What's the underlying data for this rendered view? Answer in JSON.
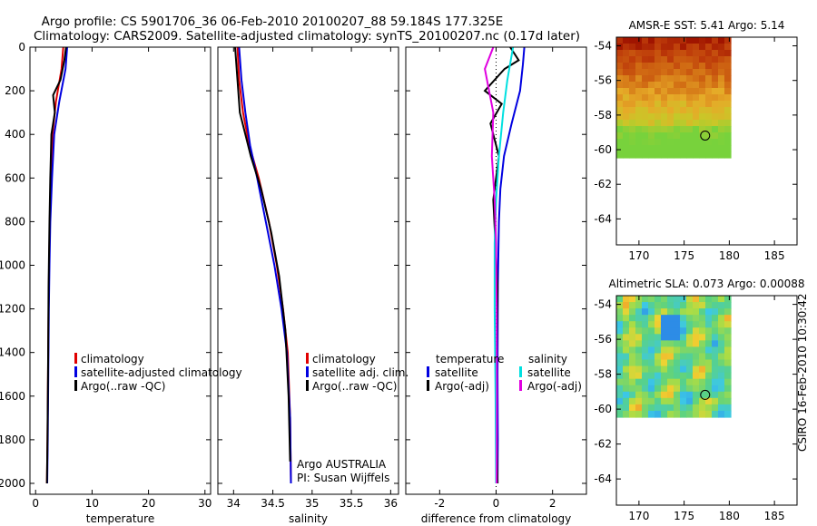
{
  "title_line1": "Argo profile: CS 5901706_36 06-Feb-2010 20100207_88 59.184S 177.325E",
  "title_line2": "Climatology: CARS2009. Satellite-adjusted climatology: synTS_20100207.nc (0.17d later)",
  "watermark": "CSIRO 16-Feb-2010 10:30:42",
  "chart_data": [
    {
      "type": "line",
      "xlabel": "temperature",
      "ylabel": "",
      "xlim": [
        -1,
        31
      ],
      "ylim": [
        2050,
        0
      ],
      "x_ticks": [
        "0",
        "10",
        "20",
        "30"
      ],
      "x_tick_values": [
        0,
        10,
        20,
        30
      ],
      "y_ticks": [
        "0",
        "200",
        "400",
        "600",
        "800",
        "1000",
        "1200",
        "1400",
        "1600",
        "1800",
        "2000"
      ],
      "y_tick_values": [
        0,
        200,
        400,
        600,
        800,
        1000,
        1200,
        1400,
        1600,
        1800,
        2000
      ],
      "legend": [
        "climatology",
        "satellite-adjusted climatology",
        "Argo(..raw -QC)"
      ],
      "legend_colors": [
        "#e00000",
        "#0000e0",
        "#000000"
      ],
      "series": [
        {
          "name": "climatology",
          "color": "#e00000",
          "x": [
            4.9,
            4.6,
            3.6,
            3.0,
            2.7,
            2.5,
            2.4,
            2.3,
            2.2,
            2.1,
            2.0
          ],
          "y": [
            0,
            100,
            250,
            400,
            600,
            800,
            1000,
            1200,
            1500,
            1800,
            2000
          ]
        },
        {
          "name": "satellite-adjusted climatology",
          "color": "#0000e0",
          "x": [
            5.6,
            5.3,
            4.2,
            3.3,
            2.9,
            2.6,
            2.45,
            2.35,
            2.25,
            2.15,
            2.05
          ],
          "y": [
            0,
            100,
            250,
            400,
            600,
            800,
            1000,
            1200,
            1500,
            1800,
            2000
          ]
        },
        {
          "name": "Argo(..raw -QC)",
          "color": "#000000",
          "x": [
            5.4,
            5.1,
            4.4,
            3.1,
            3.4,
            2.8,
            2.6,
            2.45,
            2.3,
            2.2,
            2.1,
            2.0
          ],
          "y": [
            0,
            60,
            150,
            220,
            300,
            400,
            600,
            800,
            1100,
            1500,
            1800,
            2000
          ]
        }
      ]
    },
    {
      "type": "line",
      "xlabel": "salinity",
      "xlim": [
        33.8,
        36.1
      ],
      "ylim": [
        2050,
        0
      ],
      "x_ticks": [
        "34",
        "34.5",
        "35",
        "35.5",
        "36"
      ],
      "x_tick_values": [
        34,
        34.5,
        35,
        35.5,
        36
      ],
      "legend": [
        "climatology",
        "satellite adj. clim.",
        "Argo(..raw -QC)"
      ],
      "legend_colors": [
        "#e00000",
        "#0000e0",
        "#000000"
      ],
      "annotation": [
        "Argo AUSTRALIA",
        "PI: Susan Wijffels"
      ],
      "series": [
        {
          "name": "climatology",
          "color": "#e00000",
          "x": [
            34.05,
            34.07,
            34.12,
            34.2,
            34.32,
            34.45,
            34.55,
            34.63,
            34.69,
            34.72,
            34.73
          ],
          "y": [
            0,
            150,
            300,
            450,
            600,
            800,
            1000,
            1200,
            1400,
            1700,
            2000
          ]
        },
        {
          "name": "satellite adj. clim.",
          "color": "#0000e0",
          "x": [
            34.07,
            34.1,
            34.15,
            34.21,
            34.3,
            34.41,
            34.52,
            34.61,
            34.68,
            34.72,
            34.73
          ],
          "y": [
            0,
            150,
            300,
            450,
            600,
            800,
            1000,
            1200,
            1400,
            1700,
            2000
          ]
        },
        {
          "name": "Argo(..raw -QC)",
          "color": "#000000",
          "x": [
            34.02,
            34.05,
            34.08,
            34.15,
            34.22,
            34.35,
            34.48,
            34.58,
            34.66,
            34.7,
            34.72
          ],
          "y": [
            0,
            150,
            300,
            400,
            500,
            650,
            850,
            1050,
            1300,
            1600,
            1900
          ]
        }
      ]
    },
    {
      "type": "line",
      "xlabel": "difference from climatology",
      "xlim": [
        -3.2,
        3.2
      ],
      "ylim": [
        2050,
        0
      ],
      "x_ticks": [
        "-2",
        "0",
        "2"
      ],
      "x_tick_values": [
        -2,
        0,
        2
      ],
      "legend": [
        "temperature",
        "satellite",
        "Argo(-adj)",
        "salinity",
        "satellite",
        "Argo(-adj)"
      ],
      "legend_colors": [
        "",
        "#0000e0",
        "#000000",
        "",
        "#00e0e0",
        "#e000e0"
      ],
      "series": [
        {
          "name": "temperature satellite",
          "color": "#0000e0",
          "x": [
            1.0,
            0.95,
            0.85,
            0.55,
            0.28,
            0.15,
            0.1,
            0.06,
            0.05,
            0.06,
            0.05
          ],
          "y": [
            0,
            80,
            200,
            350,
            500,
            650,
            800,
            1100,
            1500,
            1800,
            2000
          ]
        },
        {
          "name": "temperature Argo(-adj)",
          "color": "#000000",
          "x": [
            0.5,
            0.8,
            0.3,
            -0.4,
            0.2,
            -0.2,
            0.1,
            -0.1,
            0.05,
            0.0,
            0.05
          ],
          "y": [
            0,
            60,
            100,
            200,
            260,
            350,
            500,
            700,
            1100,
            1600,
            2000
          ]
        },
        {
          "name": "salinity satellite",
          "color": "#00e0e0",
          "x": [
            0.6,
            0.4,
            0.25,
            0.1,
            0.0,
            -0.05,
            -0.05,
            -0.02,
            0.0
          ],
          "y": [
            0,
            150,
            300,
            500,
            700,
            900,
            1200,
            1600,
            2000
          ]
        },
        {
          "name": "salinity Argo(-adj)",
          "color": "#e000e0",
          "x": [
            -0.1,
            -0.4,
            -0.1,
            -0.15,
            -0.05,
            0.0,
            0.02,
            0.03,
            0.02
          ],
          "y": [
            0,
            100,
            300,
            500,
            700,
            900,
            1200,
            1600,
            2000
          ]
        }
      ]
    },
    {
      "type": "heatmap",
      "title": "AMSR-E SST: 5.41 Argo: 5.14",
      "xlim": [
        167.5,
        187.5
      ],
      "ylim": [
        -65.5,
        -53.5
      ],
      "x_ticks": [
        "170",
        "175",
        "180",
        "185"
      ],
      "x_tick_values": [
        170,
        175,
        180,
        185
      ],
      "y_ticks": [
        "-54",
        "-56",
        "-58",
        "-60",
        "-62",
        "-64"
      ],
      "y_tick_values": [
        -54,
        -56,
        -58,
        -60,
        -62,
        -64
      ],
      "marker": {
        "lon": 177.325,
        "lat": -59.184
      }
    },
    {
      "type": "heatmap",
      "title": "Altimetric SLA: 0.073 Argo: 0.00088",
      "xlim": [
        167.5,
        187.5
      ],
      "ylim": [
        -65.5,
        -53.5
      ],
      "x_ticks": [
        "170",
        "175",
        "180",
        "185"
      ],
      "x_tick_values": [
        170,
        175,
        180,
        185
      ],
      "y_ticks": [
        "-54",
        "-56",
        "-58",
        "-60",
        "-62",
        "-64"
      ],
      "y_tick_values": [
        -54,
        -56,
        -58,
        -60,
        -62,
        -64
      ],
      "marker": {
        "lon": 177.325,
        "lat": -59.184
      }
    }
  ]
}
